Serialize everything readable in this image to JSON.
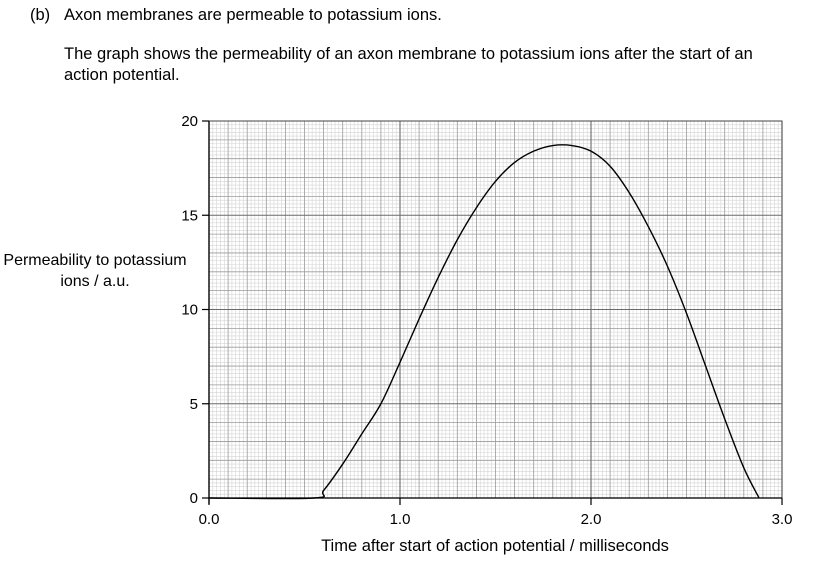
{
  "question": {
    "part_label": "(b)",
    "statement": "Axon membranes are permeable to potassium ions.",
    "text": "The graph shows the permeability of an axon membrane to potassium ions after the start of an action potential."
  },
  "chart_data": {
    "type": "line",
    "title": "",
    "xlabel": "Time after start of action potential / milliseconds",
    "ylabel": "Permeability to potassium ions / a.u.",
    "xlim": [
      0.0,
      3.0
    ],
    "ylim": [
      0,
      20
    ],
    "xticks": [
      "0.0",
      "1.0",
      "2.0",
      "3.0"
    ],
    "yticks": [
      "0",
      "5",
      "10",
      "15",
      "20"
    ],
    "grid": true,
    "series": [
      {
        "x": [
          0.0,
          0.55,
          0.6,
          0.7,
          0.8,
          0.9,
          1.0,
          1.1,
          1.2,
          1.3,
          1.4,
          1.5,
          1.6,
          1.7,
          1.8,
          1.9,
          2.0,
          2.1,
          2.2,
          2.3,
          2.4,
          2.5,
          2.6,
          2.7,
          2.8,
          2.88
        ],
        "y": [
          0,
          0,
          0.4,
          1.8,
          3.4,
          5.0,
          7.2,
          9.5,
          11.7,
          13.7,
          15.4,
          16.8,
          17.8,
          18.4,
          18.7,
          18.7,
          18.4,
          17.6,
          16.2,
          14.4,
          12.3,
          9.8,
          7.0,
          4.2,
          1.6,
          0
        ]
      }
    ]
  }
}
